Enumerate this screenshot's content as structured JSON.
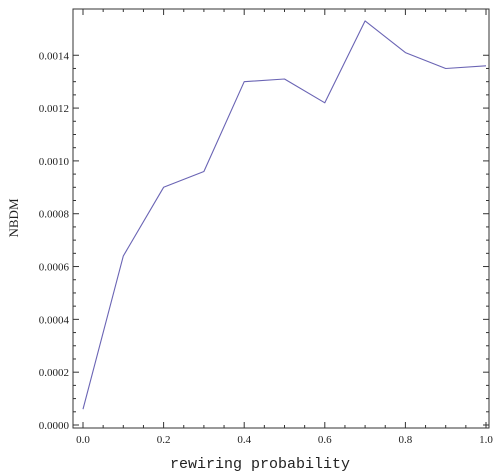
{
  "chart_data": {
    "type": "line",
    "title": "",
    "xlabel": "rewiring probability",
    "ylabel": "NBDM",
    "xlim": [
      0.0,
      1.0
    ],
    "ylim": [
      0.0,
      0.00156
    ],
    "grid": false,
    "x_ticks": [
      {
        "value": 0.0,
        "label": "0.0"
      },
      {
        "value": 0.2,
        "label": "0.2"
      },
      {
        "value": 0.4,
        "label": "0.4"
      },
      {
        "value": 0.6,
        "label": "0.6"
      },
      {
        "value": 0.8,
        "label": "0.8"
      },
      {
        "value": 1.0,
        "label": "1.0"
      }
    ],
    "y_ticks": [
      {
        "value": 0.0,
        "label": "0.0000"
      },
      {
        "value": 0.0002,
        "label": "0.0002"
      },
      {
        "value": 0.0004,
        "label": "0.0004"
      },
      {
        "value": 0.0006,
        "label": "0.0006"
      },
      {
        "value": 0.0008,
        "label": "0.0008"
      },
      {
        "value": 0.001,
        "label": "0.0010"
      },
      {
        "value": 0.0012,
        "label": "0.0012"
      },
      {
        "value": 0.0014,
        "label": "0.0014"
      }
    ],
    "series": [
      {
        "color": "#6a64b4",
        "x": [
          0.0,
          0.1,
          0.2,
          0.3,
          0.4,
          0.5,
          0.6,
          0.7,
          0.8,
          0.9,
          1.0
        ],
        "y": [
          6e-05,
          0.00064,
          0.0009,
          0.00096,
          0.0013,
          0.00131,
          0.00122,
          0.00153,
          0.00141,
          0.00135,
          0.00136
        ]
      }
    ]
  }
}
